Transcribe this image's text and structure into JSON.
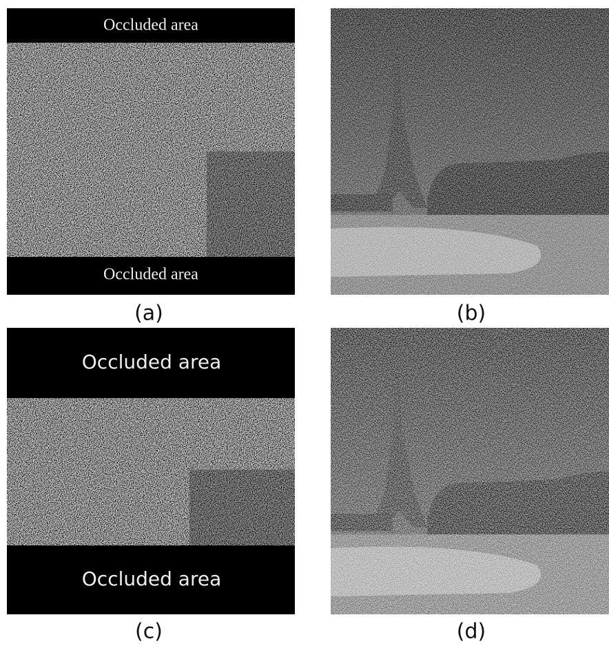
{
  "panels": [
    {
      "label": "(a)",
      "occlusion_labels": [
        "Occluded area",
        "Occluded area"
      ]
    },
    {
      "label": "(b)"
    },
    {
      "label": "(c)",
      "occlusion_labels": [
        "Occluded area",
        "Occluded area"
      ]
    },
    {
      "label": "(d)"
    }
  ]
}
